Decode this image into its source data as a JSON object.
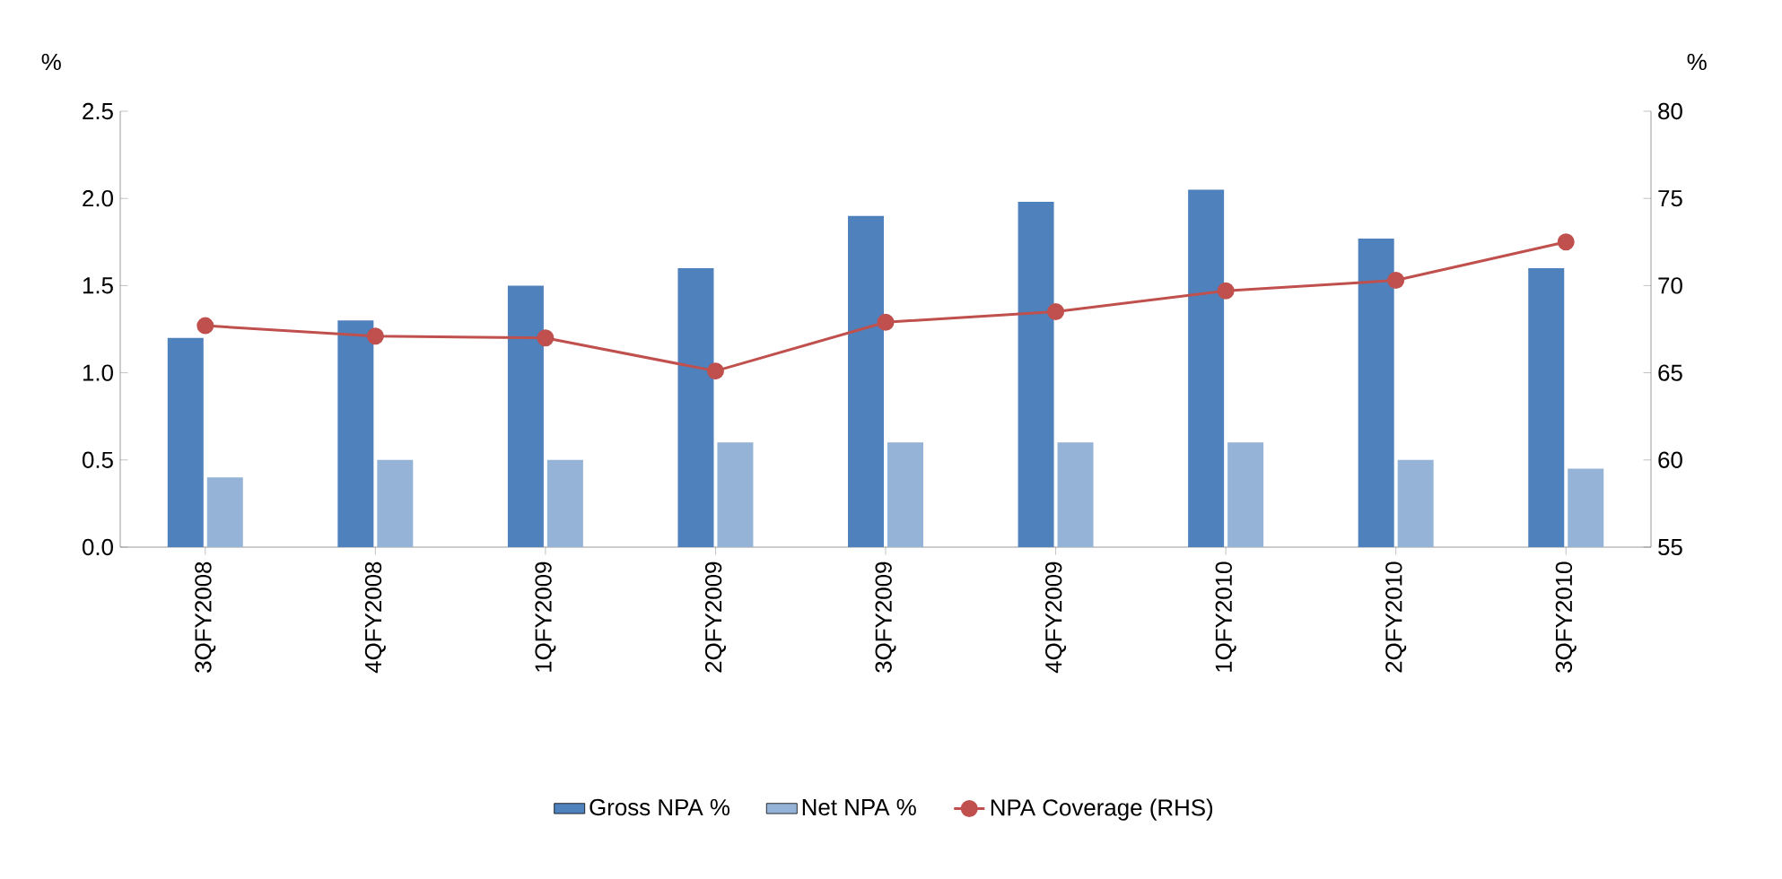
{
  "chart_data": {
    "type": "bar",
    "ylabel": "%",
    "y2label": "%",
    "categories": [
      "3QFY2008",
      "4QFY2008",
      "1QFY2009",
      "2QFY2009",
      "3QFY2009",
      "4QFY2009",
      "1QFY2010",
      "2QFY2010",
      "3QFY2010"
    ],
    "series": [
      {
        "name": "Gross NPA %",
        "color": "#4f81bd",
        "values": [
          1.2,
          1.3,
          1.5,
          1.6,
          1.9,
          1.98,
          2.05,
          1.77,
          1.6
        ]
      },
      {
        "name": "Net NPA %",
        "color": "#95b3d7",
        "values": [
          0.4,
          0.5,
          0.5,
          0.6,
          0.6,
          0.6,
          0.6,
          0.5,
          0.45
        ]
      },
      {
        "name": "NPA Coverage (RHS)",
        "type": "line",
        "axis": "y2",
        "marker": "circle",
        "color": "#c0504d",
        "values": [
          67.7,
          67.1,
          67.0,
          65.1,
          67.9,
          68.5,
          69.7,
          70.3,
          72.5
        ]
      }
    ],
    "ylim": [
      0,
      2.5
    ],
    "yticks": [
      {
        "value": 0,
        "label": "0.0"
      },
      {
        "value": 0.5,
        "label": "0.5"
      },
      {
        "value": 1,
        "label": "1.0"
      },
      {
        "value": 1.5,
        "label": "1.5"
      },
      {
        "value": 2,
        "label": "2.0"
      },
      {
        "value": 2.5,
        "label": "2.5"
      }
    ],
    "y2lim": [
      55,
      80
    ],
    "y2ticks": [
      55,
      60,
      65,
      70,
      75,
      80
    ],
    "grid": false,
    "legend": "bottom"
  }
}
